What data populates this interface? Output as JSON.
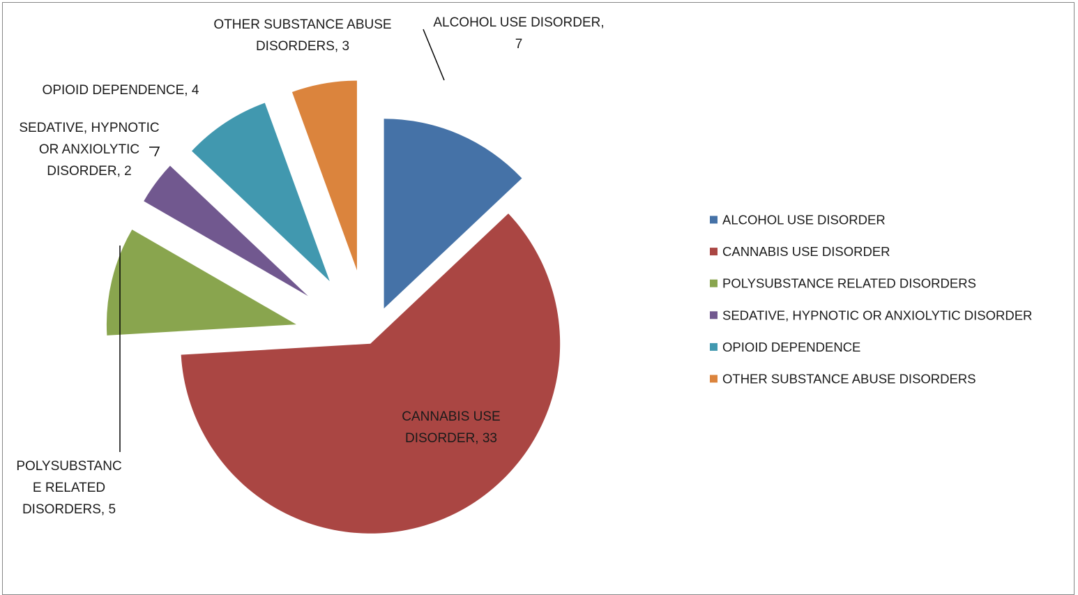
{
  "chart_data": {
    "type": "pie",
    "exploded": true,
    "title": "",
    "slices": [
      {
        "name": "ALCOHOL USE DISORDER",
        "value": 7,
        "color": "#4572A7",
        "label_lines": [
          "ALCOHOL USE DISORDER,",
          "7"
        ]
      },
      {
        "name": "CANNABIS USE DISORDER",
        "value": 33,
        "color": "#AA4643",
        "label_lines": [
          "CANNABIS USE",
          "DISORDER, 33"
        ]
      },
      {
        "name": "POLYSUBSTANCE RELATED DISORDERS",
        "value": 5,
        "color": "#89A54E",
        "label_lines": [
          "POLYSUBSTANC",
          "E RELATED",
          "DISORDERS, 5"
        ]
      },
      {
        "name": "SEDATIVE, HYPNOTIC OR ANXIOLYTIC DISORDER",
        "value": 2,
        "color": "#71588F",
        "label_lines": [
          "SEDATIVE, HYPNOTIC",
          "OR ANXIOLYTIC",
          "DISORDER, 2"
        ]
      },
      {
        "name": "OPIOID DEPENDENCE",
        "value": 4,
        "color": "#4198AF",
        "label_lines": [
          "OPIOID DEPENDENCE, 4"
        ]
      },
      {
        "name": "OTHER SUBSTANCE ABUSE DISORDERS",
        "value": 3,
        "color": "#DB843D",
        "label_lines": [
          "OTHER SUBSTANCE ABUSE",
          "DISORDERS, 3"
        ]
      }
    ],
    "legend": {
      "position": "right",
      "entries": [
        "ALCOHOL USE DISORDER",
        "CANNABIS USE DISORDER",
        "POLYSUBSTANCE RELATED DISORDERS",
        "SEDATIVE, HYPNOTIC OR ANXIOLYTIC DISORDER",
        "OPIOID DEPENDENCE",
        "OTHER SUBSTANCE ABUSE DISORDERS"
      ]
    }
  }
}
